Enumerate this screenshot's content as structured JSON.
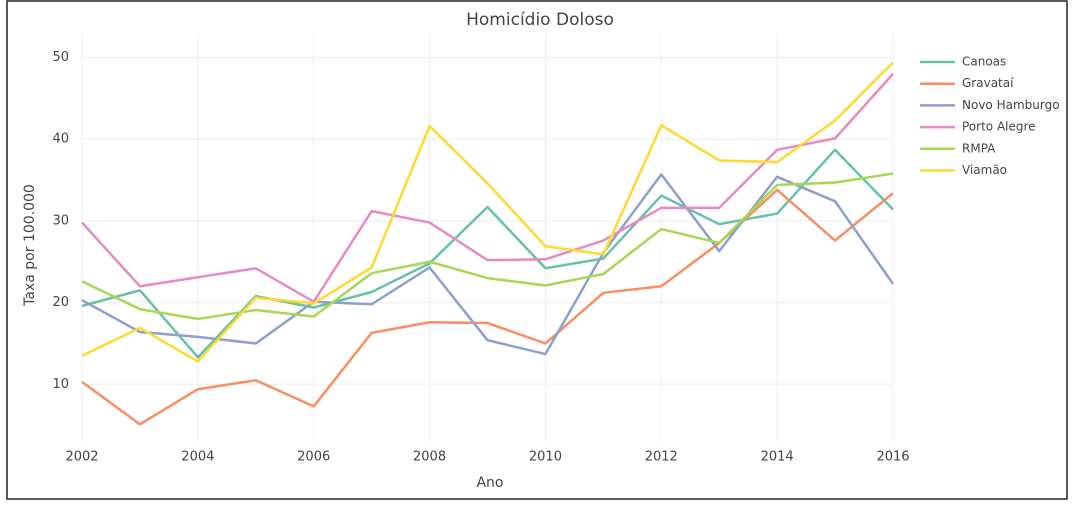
{
  "chart_data": {
    "type": "line",
    "title": "Homicídio Doloso",
    "x_label": "Ano",
    "y_label": "Taxa por 100.000",
    "x": [
      2002,
      2003,
      2004,
      2005,
      2006,
      2007,
      2008,
      2009,
      2010,
      2011,
      2012,
      2013,
      2014,
      2015,
      2016
    ],
    "xlim": [
      2002,
      2016
    ],
    "xticks": [
      2002,
      2004,
      2006,
      2008,
      2010,
      2012,
      2014,
      2016
    ],
    "ylim": [
      3,
      53
    ],
    "yticks": [
      10,
      20,
      30,
      40,
      50
    ],
    "grid": true,
    "legend": "right",
    "series": [
      {
        "name": "Canoas",
        "color": "#66c2a5",
        "values": [
          19.6,
          21.5,
          13.3,
          20.8,
          19.4,
          21.3,
          24.8,
          31.7,
          24.2,
          25.4,
          33.1,
          29.6,
          30.9,
          38.7,
          31.4
        ]
      },
      {
        "name": "Gravataí",
        "color": "#fc8d62",
        "values": [
          10.3,
          5.1,
          9.4,
          10.5,
          7.3,
          16.3,
          17.6,
          17.5,
          15.0,
          21.2,
          22.0,
          27.3,
          33.8,
          27.6,
          33.4
        ]
      },
      {
        "name": "Novo Hamburgo",
        "color": "#8da0cb",
        "values": [
          20.3,
          16.4,
          15.8,
          15.0,
          20.1,
          19.8,
          24.3,
          15.4,
          13.7,
          26.1,
          35.7,
          26.3,
          35.4,
          32.4,
          22.3
        ]
      },
      {
        "name": "Porto Alegre",
        "color": "#e78ac3",
        "values": [
          29.8,
          22.0,
          23.1,
          24.2,
          20.1,
          31.2,
          29.8,
          25.2,
          25.3,
          27.6,
          31.6,
          31.6,
          38.7,
          40.1,
          48.0
        ]
      },
      {
        "name": "RMPA",
        "color": "#a6d854",
        "values": [
          22.6,
          19.2,
          18.0,
          19.1,
          18.3,
          23.6,
          25.0,
          23.0,
          22.1,
          23.5,
          29.0,
          27.3,
          34.4,
          34.7,
          35.8
        ]
      },
      {
        "name": "Viamão",
        "color": "#ffd92f",
        "values": [
          13.5,
          16.9,
          12.8,
          20.6,
          19.9,
          24.3,
          41.6,
          34.6,
          26.9,
          25.9,
          41.7,
          37.4,
          37.2,
          42.3,
          49.4
        ]
      }
    ]
  }
}
